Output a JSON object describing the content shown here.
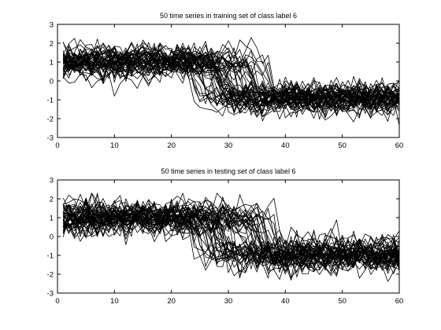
{
  "chart_data": [
    {
      "type": "line",
      "title": "50 time series in training set of class label 6",
      "xlabel": "",
      "ylabel": "",
      "xlim": [
        0,
        60
      ],
      "ylim": [
        -3,
        3
      ],
      "x_ticks": [
        "0",
        "10",
        "20",
        "30",
        "40",
        "50",
        "60"
      ],
      "y_ticks": [
        "3",
        "2",
        "1",
        "0",
        "-1",
        "-2",
        "-3"
      ],
      "series_count": 50,
      "x": [
        1,
        60
      ],
      "pattern": {
        "high_level": 1.0,
        "low_level": -0.9,
        "drop_start_range": [
          22,
          38
        ],
        "noise_amplitude": 0.35
      },
      "line_color": "#000000",
      "grid": false,
      "legend": "none"
    },
    {
      "type": "line",
      "title": "50 time series in testing set of class label 6",
      "xlabel": "",
      "ylabel": "",
      "xlim": [
        0,
        60
      ],
      "ylim": [
        -3,
        3
      ],
      "x_ticks": [
        "0",
        "10",
        "20",
        "30",
        "40",
        "50",
        "60"
      ],
      "y_ticks": [
        "3",
        "2",
        "1",
        "0",
        "-1",
        "-2",
        "-3"
      ],
      "series_count": 50,
      "x": [
        1,
        60
      ],
      "pattern": {
        "high_level": 1.0,
        "low_level": -0.95,
        "drop_start_range": [
          22,
          38
        ],
        "noise_amplitude": 0.38
      },
      "line_color": "#000000",
      "grid": false,
      "legend": "none"
    }
  ]
}
